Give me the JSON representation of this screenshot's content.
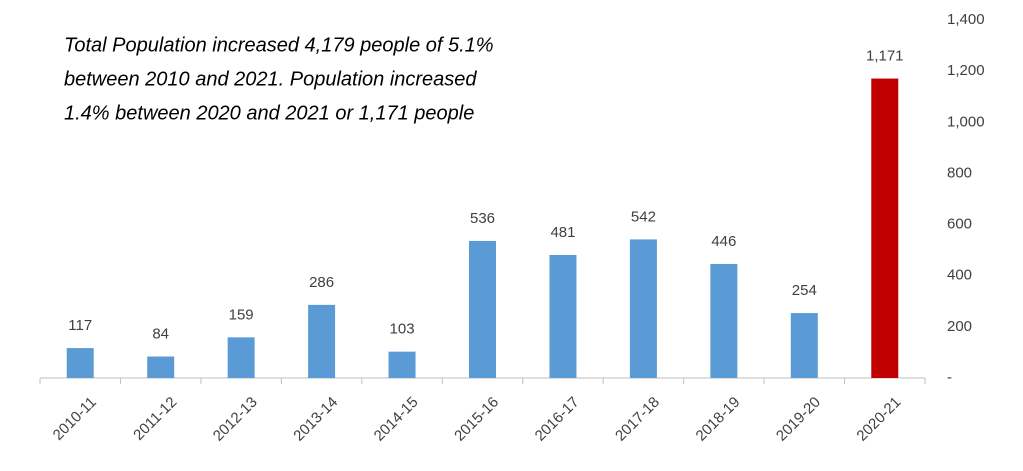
{
  "chart_data": {
    "type": "bar",
    "annotation": [
      "Total Population increased 4,179 people of 5.1%",
      "between 2010 and 2021.  Population increased",
      "1.4% between 2020 and 2021 or 1,171 people"
    ],
    "categories": [
      "2010-11",
      "2011-12",
      "2012-13",
      "2013-14",
      "2014-15",
      "2015-16",
      "2016-17",
      "2017-18",
      "2018-19",
      "2019-20",
      "2020-21"
    ],
    "values": [
      117,
      84,
      159,
      286,
      103,
      536,
      481,
      542,
      446,
      254,
      1171
    ],
    "value_labels": [
      "117",
      "84",
      "159",
      "286",
      "103",
      "536",
      "481",
      "542",
      "446",
      "254",
      "1,171"
    ],
    "colors": [
      "#5b9bd5",
      "#5b9bd5",
      "#5b9bd5",
      "#5b9bd5",
      "#5b9bd5",
      "#5b9bd5",
      "#5b9bd5",
      "#5b9bd5",
      "#5b9bd5",
      "#5b9bd5",
      "#c00000"
    ],
    "ylim": [
      0,
      1400
    ],
    "yticks": [
      {
        "value": 0,
        "label": "-"
      },
      200,
      400,
      600,
      800,
      {
        "value": 1000,
        "label": "1,000"
      },
      {
        "value": 1200,
        "label": "1,200"
      },
      {
        "value": 1400,
        "label": "1,400"
      }
    ],
    "y_axis_side": "right",
    "grid": false
  }
}
